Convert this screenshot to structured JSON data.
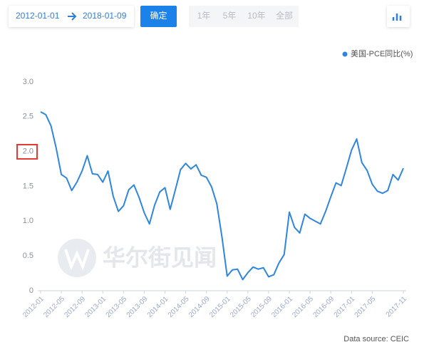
{
  "toolbar": {
    "start_date": "2012-01-01",
    "end_date": "2018-01-09",
    "confirm": "确定",
    "ranges": [
      "1年",
      "5年",
      "10年",
      "全部"
    ]
  },
  "chart_data": {
    "type": "line",
    "categories": [
      "2012-01",
      null,
      null,
      null,
      "2012-05",
      null,
      null,
      null,
      "2012-09",
      null,
      null,
      null,
      "2013-01",
      null,
      null,
      null,
      "2013-05",
      null,
      null,
      null,
      "2013-09",
      null,
      null,
      null,
      "2014-01",
      null,
      null,
      null,
      "2014-05",
      null,
      null,
      null,
      "2014-09",
      null,
      null,
      null,
      "2015-01",
      null,
      null,
      null,
      "2015-05",
      null,
      null,
      null,
      "2015-09",
      null,
      null,
      null,
      "2016-01",
      null,
      null,
      null,
      "2016-05",
      null,
      null,
      null,
      "2016-09",
      null,
      null,
      null,
      "2017-01",
      null,
      null,
      null,
      "2017-05",
      null,
      null,
      null,
      null,
      null,
      "2017-11"
    ],
    "series": [
      {
        "name": "美国-PCE同比(%)",
        "color": "#2e86de",
        "values": [
          2.57,
          2.53,
          2.37,
          2.05,
          1.67,
          1.62,
          1.44,
          1.56,
          1.72,
          1.94,
          1.68,
          1.67,
          1.56,
          1.72,
          1.36,
          1.14,
          1.22,
          1.45,
          1.52,
          1.34,
          1.12,
          0.96,
          1.23,
          1.42,
          1.48,
          1.17,
          1.45,
          1.74,
          1.83,
          1.75,
          1.81,
          1.66,
          1.63,
          1.49,
          1.25,
          0.77,
          0.21,
          0.3,
          0.31,
          0.16,
          0.26,
          0.34,
          0.31,
          0.33,
          0.2,
          0.23,
          0.4,
          0.52,
          1.13,
          0.91,
          0.83,
          1.1,
          1.04,
          1.0,
          0.96,
          1.14,
          1.35,
          1.55,
          1.51,
          1.76,
          2.02,
          2.18,
          1.84,
          1.73,
          1.53,
          1.43,
          1.4,
          1.44,
          1.67,
          1.59,
          1.76
        ]
      }
    ],
    "ylim": [
      0,
      3
    ],
    "yticks": [
      0,
      0.5,
      {
        "value": 1,
        "label": "1.0"
      },
      1.5,
      {
        "value": 2,
        "label": "2.0"
      },
      2.5,
      {
        "value": 3,
        "label": "3.0"
      }
    ],
    "grid": false,
    "legend": "top-right",
    "watermark": "华尔街见闻",
    "source": "Data source: CEIC"
  }
}
